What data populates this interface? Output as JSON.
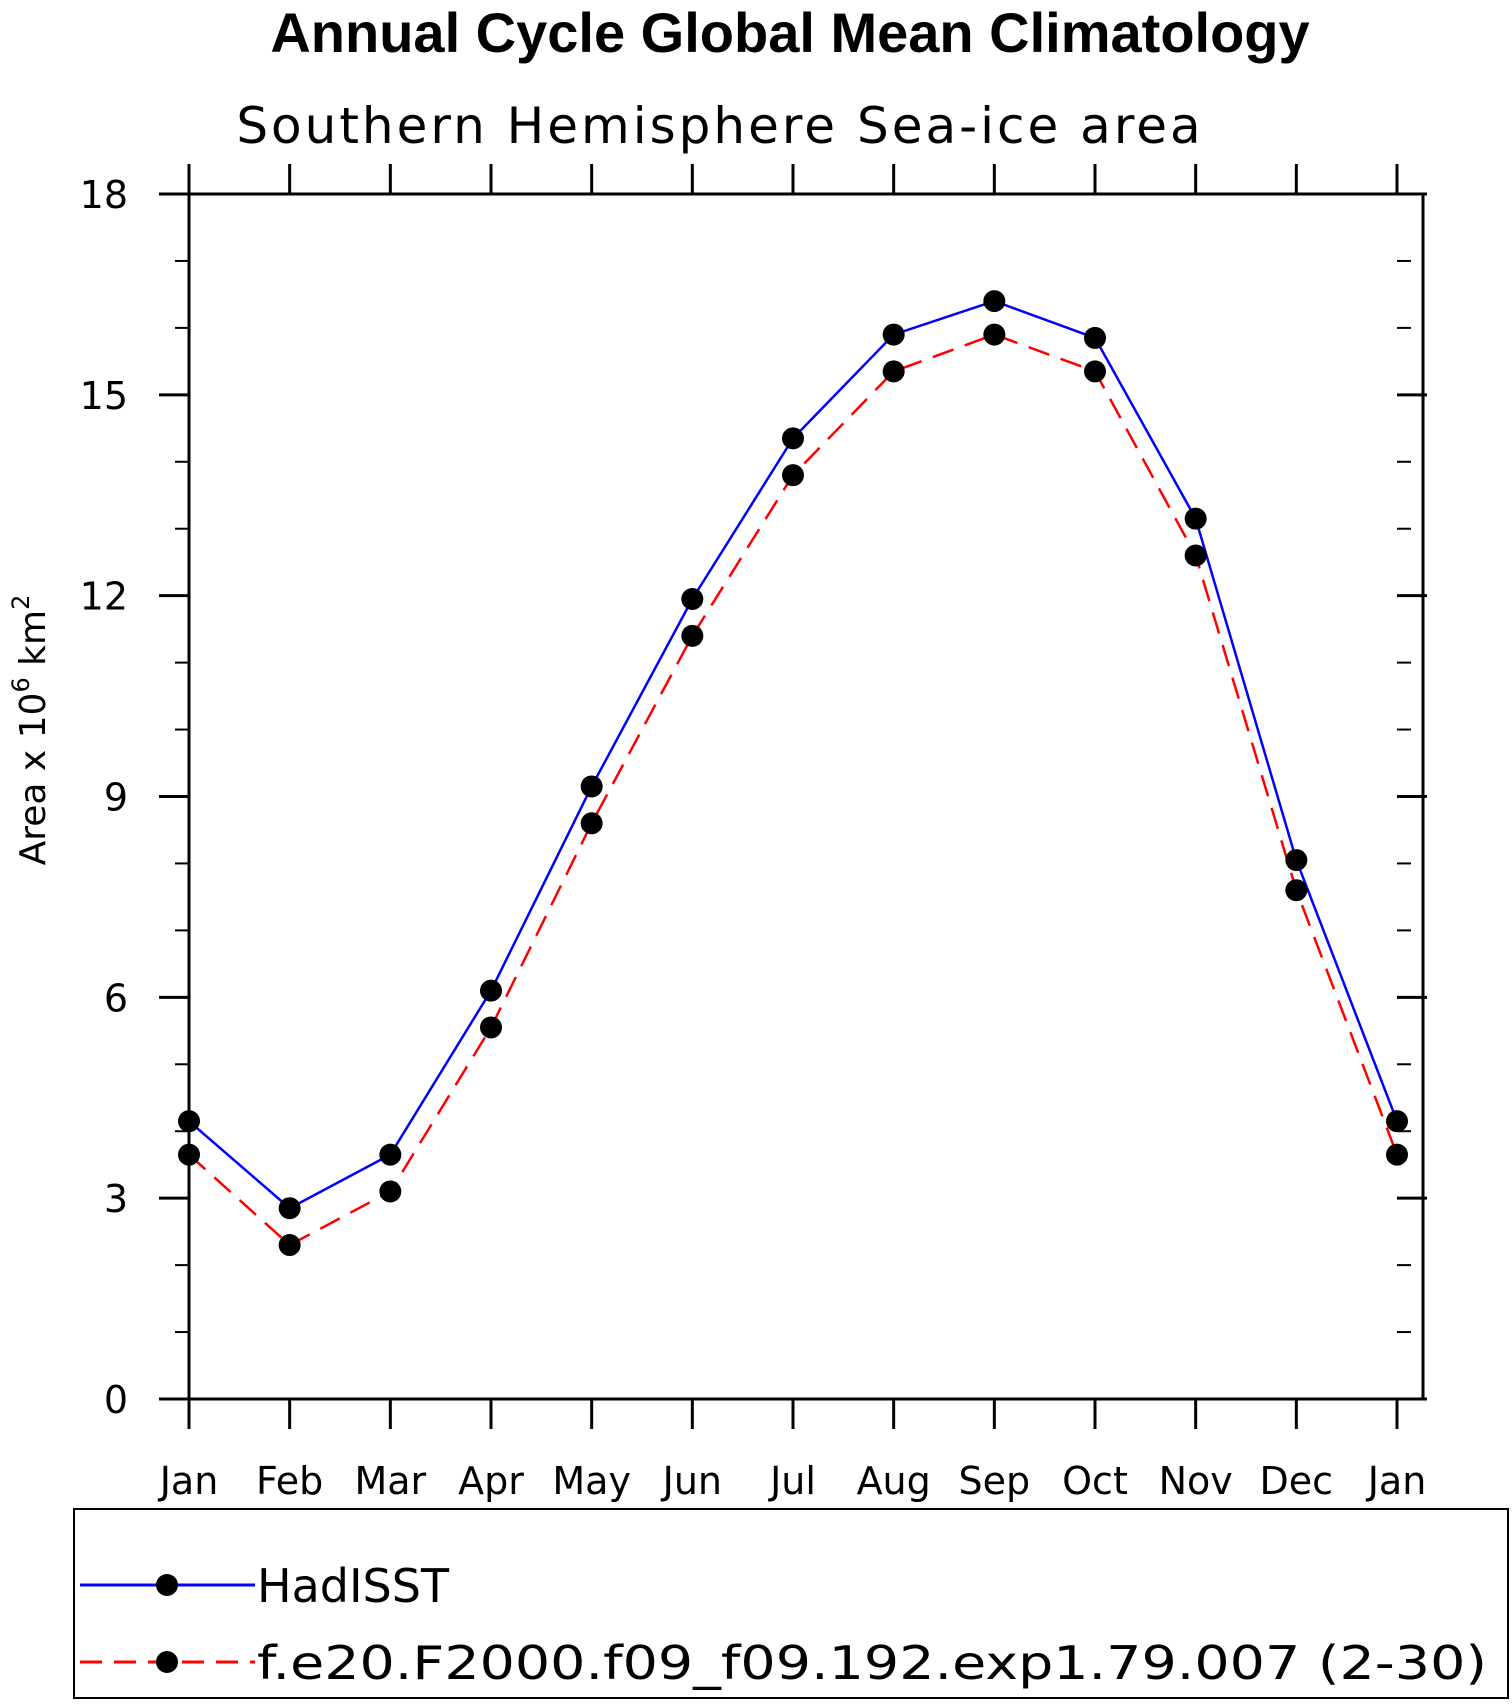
{
  "chart_data": {
    "type": "line",
    "title": "Annual Cycle Global Mean Climatology",
    "subtitle": "Southern Hemisphere Sea-ice area",
    "ylabel_main": "Area x 10",
    "ylabel_exponent": "6",
    "ylabel_unit": "km",
    "ylabel_unit_exponent": "2",
    "xlabel": "",
    "categories": [
      "Jan",
      "Feb",
      "Mar",
      "Apr",
      "May",
      "Jun",
      "Jul",
      "Aug",
      "Sep",
      "Oct",
      "Nov",
      "Dec",
      "Jan"
    ],
    "ylim": [
      0,
      18
    ],
    "yticks": [
      0,
      3,
      6,
      9,
      12,
      15,
      18
    ],
    "y_minor_step": 1,
    "series": [
      {
        "name": "HadISST",
        "color": "#0000ff",
        "dash": "solid",
        "values": [
          4.15,
          2.85,
          3.65,
          6.1,
          9.15,
          11.95,
          14.35,
          15.9,
          16.4,
          15.85,
          13.15,
          8.05,
          4.15
        ]
      },
      {
        "name": "f.e20.F2000.f09_f09.192.exp1.79.007 (2-30)",
        "color": "#ff0000",
        "dash": "dashed",
        "values": [
          3.65,
          2.3,
          3.1,
          5.55,
          8.6,
          11.4,
          13.8,
          15.35,
          15.9,
          15.35,
          12.6,
          7.6,
          3.65
        ]
      }
    ],
    "marker": "filled-circle",
    "marker_color": "#000000",
    "legend_position": "bottom"
  }
}
